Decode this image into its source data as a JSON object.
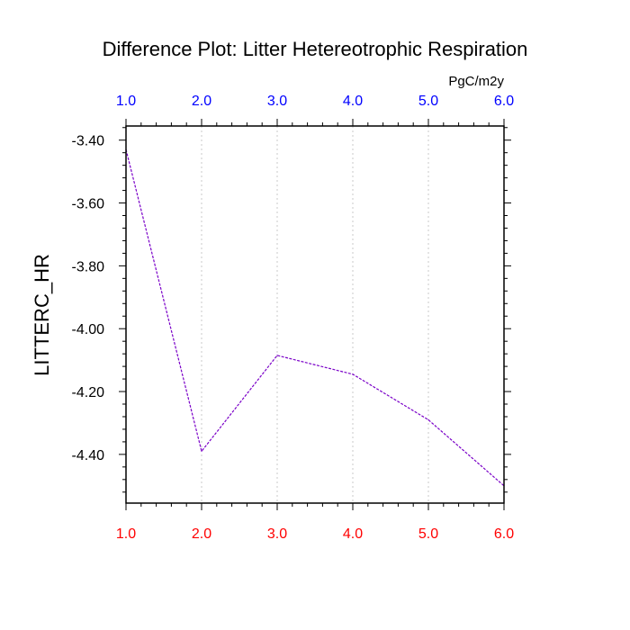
{
  "chart_data": {
    "type": "line",
    "title": "Difference Plot: Litter Hetereotrophic Respiration",
    "units": "PgC/m2y",
    "ylabel": "LITTERC_HR",
    "xlim": [
      1.0,
      6.0
    ],
    "ylim": [
      -4.555,
      -3.355
    ],
    "x_ticks_bottom": [
      "1.0",
      "2.0",
      "3.0",
      "4.0",
      "5.0",
      "6.0"
    ],
    "x_ticks_top": [
      "1.0",
      "2.0",
      "3.0",
      "4.0",
      "5.0",
      "6.0"
    ],
    "y_ticks": [
      "-3.40",
      "-3.60",
      "-3.80",
      "-4.00",
      "-4.20",
      "-4.40"
    ],
    "x_gridlines": true,
    "series": [
      {
        "x": [
          1.0,
          2.0,
          3.0,
          4.0,
          5.0,
          6.0
        ],
        "values": [
          -3.43,
          -4.39,
          -4.085,
          -4.145,
          -4.29,
          -4.5
        ],
        "color": "#7a00c8",
        "line_style": "dashed"
      }
    ],
    "colors": {
      "bottom_tick_labels": "#ff0000",
      "top_tick_labels": "#0000ff",
      "gridline": "#c8c8c8"
    }
  }
}
